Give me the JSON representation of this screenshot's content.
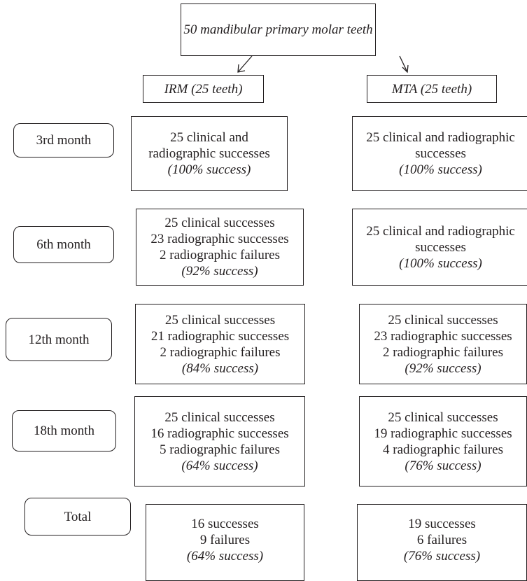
{
  "top": {
    "text": "50 mandibular primary molar teeth"
  },
  "groups": {
    "irm": "IRM (25 teeth)",
    "mta": "MTA (25 teeth)"
  },
  "rows": [
    {
      "label": "3rd month",
      "irm": {
        "lines": [
          "25 clinical and",
          "radiographic successes"
        ],
        "rate": "(100% success)"
      },
      "mta": {
        "lines": [
          "25 clinical and radiographic",
          "successes"
        ],
        "rate": "(100% success)"
      }
    },
    {
      "label": "6th month",
      "irm": {
        "lines": [
          "25 clinical successes",
          "23 radiographic successes",
          "2 radiographic failures"
        ],
        "rate": "(92% success)"
      },
      "mta": {
        "lines": [
          "25 clinical and radiographic",
          "successes"
        ],
        "rate": "(100% success)"
      }
    },
    {
      "label": "12th month",
      "irm": {
        "lines": [
          "25 clinical successes",
          "21 radiographic successes",
          "2 radiographic failures"
        ],
        "rate": "(84% success)"
      },
      "mta": {
        "lines": [
          "25 clinical successes",
          "23 radiographic successes",
          "2 radiographic failures"
        ],
        "rate": "(92% success)"
      }
    },
    {
      "label": "18th month",
      "irm": {
        "lines": [
          "25 clinical successes",
          "16 radiographic successes",
          "5 radiographic failures"
        ],
        "rate": "(64% success)"
      },
      "mta": {
        "lines": [
          "25 clinical successes",
          "19 radiographic successes",
          "4 radiographic failures"
        ],
        "rate": "(76% success)"
      }
    },
    {
      "label": "Total",
      "irm": {
        "lines": [
          "16 successes",
          "9 failures"
        ],
        "rate": "(64% success)"
      },
      "mta": {
        "lines": [
          "19 successes",
          "6 failures"
        ],
        "rate": "(76% success)"
      }
    }
  ]
}
